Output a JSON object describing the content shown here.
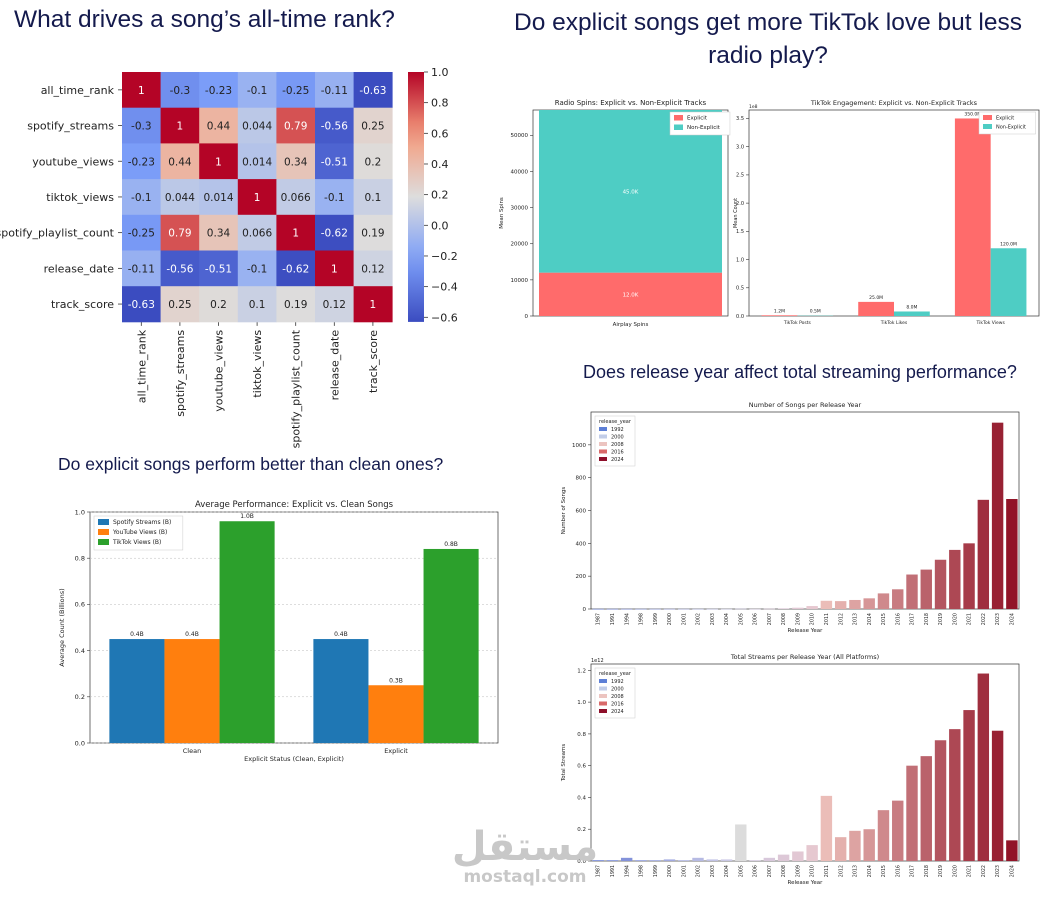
{
  "headings": {
    "h1": "What drives a song’s all-time rank?",
    "h2": "Do explicit songs get more TikTok love but less radio play?",
    "h3": "Do explicit songs perform better than clean ones?",
    "h4": "Does release year affect total streaming performance?"
  },
  "watermark": {
    "arabic": "مستقل",
    "latin": "mostaql.com"
  },
  "chart_data": [
    {
      "id": "corr",
      "type": "heatmap",
      "labels": [
        "all_time_rank",
        "spotify_streams",
        "youtube_views",
        "tiktok_views",
        "spotify_playlist_count",
        "release_date",
        "track_score"
      ],
      "matrix": [
        [
          1,
          -0.3,
          -0.23,
          -0.1,
          -0.25,
          -0.11,
          -0.63
        ],
        [
          -0.3,
          1,
          0.44,
          0.044,
          0.79,
          -0.56,
          0.25
        ],
        [
          -0.23,
          0.44,
          1,
          0.014,
          0.34,
          -0.51,
          0.2
        ],
        [
          -0.1,
          0.044,
          0.014,
          1,
          0.066,
          -0.1,
          0.1
        ],
        [
          -0.25,
          0.79,
          0.34,
          0.066,
          1,
          -0.62,
          0.19
        ],
        [
          -0.11,
          -0.56,
          -0.51,
          -0.1,
          -0.62,
          1,
          0.12
        ],
        [
          -0.63,
          0.25,
          0.2,
          0.1,
          0.19,
          0.12,
          1
        ]
      ],
      "cell_text": [
        [
          "1",
          "-0.3",
          "-0.23",
          "-0.1",
          "-0.25",
          "-0.11",
          "-0.63"
        ],
        [
          "-0.3",
          "1",
          "0.44",
          "0.044",
          "0.79",
          "-0.56",
          "0.25"
        ],
        [
          "-0.23",
          "0.44",
          "1",
          "0.014",
          "0.34",
          "-0.51",
          "0.2"
        ],
        [
          "-0.1",
          "0.044",
          "0.014",
          "1",
          "0.066",
          "-0.1",
          "0.1"
        ],
        [
          "-0.25",
          "0.79",
          "0.34",
          "0.066",
          "1",
          "-0.62",
          "0.19"
        ],
        [
          "-0.11",
          "-0.56",
          "-0.51",
          "-0.1",
          "-0.62",
          "1",
          "0.12"
        ],
        [
          "-0.63",
          "0.25",
          "0.2",
          "0.1",
          "0.19",
          "0.12",
          "1"
        ]
      ],
      "colorbar": {
        "range": [
          -0.63,
          1
        ],
        "ticks": [
          "1.0",
          "0.8",
          "0.6",
          "0.4",
          "0.2",
          "0.0",
          "−0.2",
          "−0.4",
          "−0.6"
        ],
        "tick_values": [
          1,
          0.8,
          0.6,
          0.4,
          0.2,
          0,
          -0.2,
          -0.4,
          -0.6
        ]
      },
      "colormap": "coolwarm"
    },
    {
      "id": "radio",
      "type": "bar",
      "stacked": true,
      "title": "Radio Spins: Explicit vs. Non-Explicit Tracks",
      "ylabel": "Mean Spins",
      "categories": [
        "Airplay Spins"
      ],
      "series": [
        {
          "name": "Explicit",
          "values": [
            12000
          ],
          "labels": [
            "12.0K"
          ],
          "color": "#ff6b6b"
        },
        {
          "name": "Non-Explicit",
          "values": [
            45000
          ],
          "labels": [
            "45.0K"
          ],
          "color": "#4ecdc4"
        }
      ],
      "ylim": [
        0,
        57000
      ],
      "yticks": [
        0,
        10000,
        20000,
        30000,
        40000,
        50000
      ],
      "ytick_labels": [
        "0",
        "10000",
        "20000",
        "30000",
        "40000",
        "50000"
      ],
      "legend": "top-right"
    },
    {
      "id": "tiktok",
      "type": "bar",
      "title": "TikTok Engagement: Explicit vs. Non-Explicit Tracks",
      "ylabel": "Mean Count",
      "scale_note": "1e8",
      "categories": [
        "TikTok Posts",
        "TikTok Likes",
        "TikTok Views"
      ],
      "series": [
        {
          "name": "Explicit",
          "values": [
            0.012,
            0.25,
            3.5
          ],
          "labels": [
            "1.2M",
            "25.0M",
            "350.0M"
          ],
          "color": "#ff6b6b"
        },
        {
          "name": "Non-Explicit",
          "values": [
            0.005,
            0.08,
            1.2
          ],
          "labels": [
            "0.5M",
            "8.0M",
            "120.0M"
          ],
          "color": "#4ecdc4"
        }
      ],
      "ylim": [
        0,
        3.65
      ],
      "yticks": [
        0,
        0.5,
        1,
        1.5,
        2,
        2.5,
        3,
        3.5
      ],
      "ytick_labels": [
        "0.0",
        "0.5",
        "1.0",
        "1.5",
        "2.0",
        "2.5",
        "3.0",
        "3.5"
      ],
      "legend": "top-right"
    },
    {
      "id": "clean",
      "type": "bar",
      "title": "Average Performance: Explicit vs. Clean Songs",
      "xlabel": "Explicit Status (Clean, Explicit)",
      "ylabel": "Average Count (Billions)",
      "categories": [
        "Clean",
        "Explicit"
      ],
      "series": [
        {
          "name": "Spotify Streams (B)",
          "values": [
            0.45,
            0.45
          ],
          "labels": [
            "0.4B",
            "0.4B"
          ],
          "color": "#1f77b4"
        },
        {
          "name": "YouTube Views (B)",
          "values": [
            0.45,
            0.25
          ],
          "labels": [
            "0.4B",
            "0.3B"
          ],
          "color": "#ff7f0e"
        },
        {
          "name": "TikTok Views (B)",
          "values": [
            0.96,
            0.84
          ],
          "labels": [
            "1.0B",
            "0.8B"
          ],
          "color": "#2ca02c"
        }
      ],
      "ylim": [
        0,
        1.0
      ],
      "yticks": [
        0,
        0.2,
        0.4,
        0.6,
        0.8,
        1.0
      ],
      "ytick_labels": [
        "0.0",
        "0.2",
        "0.4",
        "0.6",
        "0.8",
        "1.0"
      ],
      "grid": true,
      "legend": "top-left"
    },
    {
      "id": "songs",
      "type": "bar",
      "title": "Number of Songs per Release Year",
      "xlabel": "Release Year",
      "ylabel": "Number of Songs",
      "categories": [
        "1987",
        "1991",
        "1994",
        "1998",
        "1999",
        "2000",
        "2001",
        "2002",
        "2003",
        "2004",
        "2005",
        "2006",
        "2007",
        "2008",
        "2009",
        "2010",
        "2011",
        "2012",
        "2013",
        "2014",
        "2015",
        "2016",
        "2017",
        "2018",
        "2019",
        "2020",
        "2021",
        "2022",
        "2023",
        "2024"
      ],
      "values": [
        1,
        1,
        1,
        1,
        1,
        1,
        1,
        1,
        1,
        1,
        2,
        1,
        2,
        4,
        8,
        18,
        50,
        48,
        55,
        65,
        95,
        120,
        210,
        240,
        300,
        360,
        400,
        665,
        1135,
        670
      ],
      "ylim": [
        0,
        1200
      ],
      "yticks": [
        0,
        200,
        400,
        600,
        800,
        1000
      ],
      "ytick_labels": [
        "0",
        "200",
        "400",
        "600",
        "800",
        "1000"
      ],
      "legend_title": "release_year",
      "legend_items": [
        "1992",
        "2000",
        "2008",
        "2016",
        "2024"
      ],
      "legend": "top-left"
    },
    {
      "id": "streams",
      "type": "bar",
      "title": "Total Streams per Release Year (All Platforms)",
      "xlabel": "Release Year",
      "ylabel": "Total Streams",
      "scale_note": "1e12",
      "categories": [
        "1987",
        "1991",
        "1994",
        "1998",
        "1999",
        "2000",
        "2001",
        "2002",
        "2003",
        "2004",
        "2005",
        "2006",
        "2007",
        "2008",
        "2009",
        "2010",
        "2011",
        "2012",
        "2013",
        "2014",
        "2015",
        "2016",
        "2017",
        "2018",
        "2019",
        "2020",
        "2021",
        "2022",
        "2023",
        "2024"
      ],
      "values": [
        0.005,
        0.005,
        0.02,
        0.005,
        0.005,
        0.01,
        0.005,
        0.02,
        0.01,
        0.01,
        0.23,
        0.005,
        0.02,
        0.04,
        0.06,
        0.1,
        0.41,
        0.15,
        0.19,
        0.2,
        0.32,
        0.38,
        0.6,
        0.66,
        0.76,
        0.83,
        0.95,
        1.18,
        0.82,
        0.13
      ],
      "ylim": [
        0,
        1.24
      ],
      "yticks": [
        0,
        0.2,
        0.4,
        0.6,
        0.8,
        1.0,
        1.2
      ],
      "ytick_labels": [
        "0.0",
        "0.2",
        "0.4",
        "0.6",
        "0.8",
        "1.0",
        "1.2"
      ],
      "legend_title": "release_year",
      "legend_items": [
        "1992",
        "2000",
        "2008",
        "2016",
        "2024"
      ],
      "legend": "top-left"
    }
  ]
}
